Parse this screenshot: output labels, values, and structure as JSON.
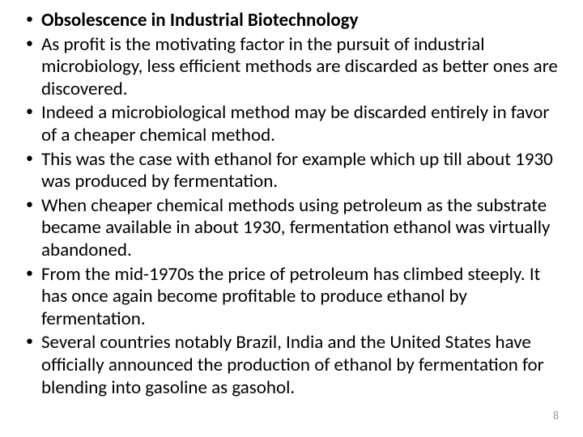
{
  "bullets": [
    {
      "text": "Obsolescence in Industrial Biotechnology",
      "bold": true
    },
    {
      "text": "As profit is the motivating factor in the pursuit of industrial microbiology, less efficient methods are discarded as better ones are discovered.",
      "bold": false
    },
    {
      "text": "Indeed a microbiological method may be discarded entirely in favor of a cheaper chemical method.",
      "bold": false
    },
    {
      "text": "This was the case with ethanol for example which up till about 1930 was produced by fermentation.",
      "bold": false
    },
    {
      "text": "When cheaper chemical methods using petroleum as the substrate became available in about 1930, fermentation ethanol was virtually abandoned.",
      "bold": false
    },
    {
      "text": "From the mid-1970s the price of petroleum has climbed steeply. It has once again become profitable to produce ethanol by fermentation.",
      "bold": false
    },
    {
      "text": "Several countries notably Brazil, India and the United States have officially announced the production of ethanol by fermentation for blending into gasoline as gasohol.",
      "bold": false
    }
  ],
  "bullet_marker": "•",
  "page_number": "8",
  "colors": {
    "text": "#000000",
    "page_number": "#999999",
    "background": "#ffffff"
  },
  "typography": {
    "font_family": "Calibri, Arial, sans-serif",
    "body_fontsize": 23,
    "page_number_fontsize": 14,
    "bullet_marker_fontsize": 18
  }
}
